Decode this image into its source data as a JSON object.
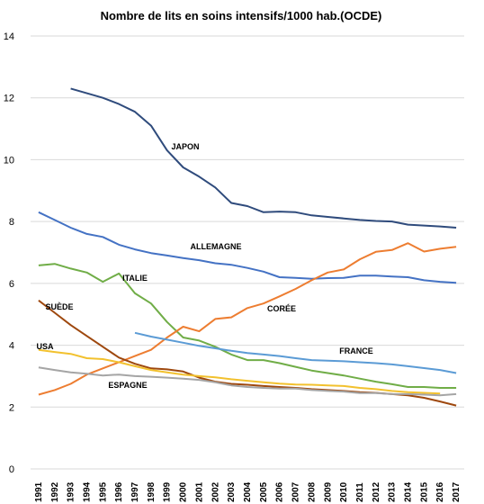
{
  "chart_data": {
    "type": "line",
    "title": "Nombre de lits en soins intensifs/1000 hab.(OCDE)",
    "xlabel": "",
    "ylabel": "",
    "ylim": [
      0,
      14
    ],
    "yticks": [
      "0",
      "2",
      "4",
      "6",
      "8",
      "10",
      "12",
      "14"
    ],
    "x": [
      "1991",
      "1992",
      "1993",
      "1994",
      "1995",
      "1996",
      "1997",
      "1998",
      "1999",
      "2000",
      "2001",
      "2002",
      "2003",
      "2004",
      "2005",
      "2006",
      "2007",
      "2008",
      "2009",
      "2010",
      "2011",
      "2012",
      "2013",
      "2014",
      "2015",
      "2016",
      "2017"
    ],
    "grid": true,
    "legend": "none",
    "series": [
      {
        "name": "JAPON",
        "color": "#2f4b7c",
        "values": [
          null,
          null,
          12.3,
          12.15,
          12.0,
          11.8,
          11.55,
          11.1,
          10.3,
          9.75,
          9.45,
          9.1,
          8.6,
          8.5,
          8.3,
          8.32,
          8.3,
          8.2,
          8.15,
          8.1,
          8.05,
          8.02,
          8.0,
          7.9,
          7.87,
          7.84,
          7.8
        ]
      },
      {
        "name": "ALLEMAGNE",
        "color": "#4472c4",
        "values": [
          8.3,
          8.05,
          7.8,
          7.6,
          7.5,
          7.25,
          7.1,
          6.98,
          6.9,
          6.82,
          6.75,
          6.65,
          6.6,
          6.5,
          6.38,
          6.2,
          6.18,
          6.15,
          6.17,
          6.18,
          6.25,
          6.25,
          6.22,
          6.2,
          6.1,
          6.05,
          6.02
        ]
      },
      {
        "name": "ITALIE",
        "color": "#70ad47",
        "values": [
          6.58,
          6.63,
          6.48,
          6.35,
          6.05,
          6.32,
          5.68,
          5.35,
          4.75,
          4.25,
          4.15,
          3.95,
          3.7,
          3.52,
          3.52,
          3.42,
          3.3,
          3.18,
          3.1,
          3.02,
          2.92,
          2.82,
          2.74,
          2.65,
          2.65,
          2.62,
          2.62
        ]
      },
      {
        "name": "CORÉE",
        "color": "#ed7d31",
        "values": [
          2.4,
          2.55,
          2.75,
          3.05,
          3.25,
          3.45,
          3.65,
          3.85,
          4.25,
          4.6,
          4.45,
          4.85,
          4.9,
          5.2,
          5.35,
          5.58,
          5.82,
          6.1,
          6.35,
          6.45,
          6.78,
          7.02,
          7.08,
          7.3,
          7.03,
          7.12,
          7.18
        ]
      },
      {
        "name": "SUÈDE",
        "color": "#9e480e",
        "values": [
          5.45,
          5.05,
          4.65,
          4.3,
          3.95,
          3.6,
          3.4,
          3.25,
          3.22,
          3.15,
          2.95,
          2.82,
          2.75,
          2.72,
          2.68,
          2.65,
          2.62,
          2.58,
          2.55,
          2.52,
          2.48,
          2.46,
          2.42,
          2.38,
          2.3,
          2.18,
          2.05
        ]
      },
      {
        "name": "FRANCE",
        "color": "#5b9bd5",
        "values": [
          null,
          null,
          null,
          null,
          null,
          null,
          4.4,
          4.28,
          4.18,
          4.08,
          3.98,
          3.9,
          3.82,
          3.75,
          3.7,
          3.65,
          3.58,
          3.52,
          3.5,
          3.48,
          3.45,
          3.42,
          3.38,
          3.32,
          3.26,
          3.2,
          3.1
        ]
      },
      {
        "name": "USA",
        "color": "#f2c12e",
        "values": [
          3.85,
          3.78,
          3.72,
          3.58,
          3.55,
          3.45,
          3.32,
          3.2,
          3.12,
          3.05,
          3.0,
          2.96,
          2.9,
          2.85,
          2.8,
          2.76,
          2.73,
          2.72,
          2.7,
          2.68,
          2.62,
          2.58,
          2.52,
          2.48,
          2.46,
          2.44,
          null
        ]
      },
      {
        "name": "ESPAGNE",
        "color": "#a5a5a5",
        "values": [
          3.28,
          3.2,
          3.12,
          3.08,
          3.02,
          3.05,
          3.0,
          2.98,
          2.95,
          2.92,
          2.88,
          2.8,
          2.7,
          2.65,
          2.62,
          2.6,
          2.6,
          2.55,
          2.52,
          2.5,
          2.45,
          2.45,
          2.42,
          2.42,
          2.4,
          2.38,
          2.42
        ]
      }
    ],
    "annotations": [
      {
        "text": "JAPON",
        "series": "JAPON"
      },
      {
        "text": "ALLEMAGNE",
        "series": "ALLEMAGNE"
      },
      {
        "text": "ITALIE",
        "series": "ITALIE"
      },
      {
        "text": "CORÉE",
        "series": "CORÉE"
      },
      {
        "text": "SUÈDE",
        "series": "SUÈDE"
      },
      {
        "text": "USA",
        "series": "USA"
      },
      {
        "text": "FRANCE",
        "series": "FRANCE"
      },
      {
        "text": "ESPAGNE",
        "series": "ESPAGNE"
      }
    ]
  }
}
